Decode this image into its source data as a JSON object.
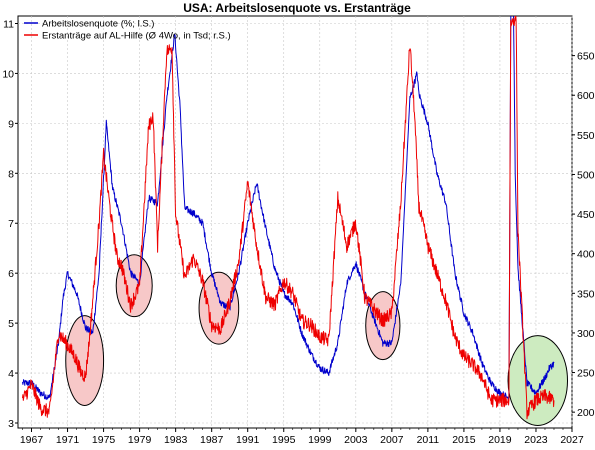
{
  "chart_data": {
    "type": "line",
    "title": "USA: Arbeitslosenquote vs. Erstanträge",
    "xlim": [
      1965.5,
      2027
    ],
    "x_ticks": [
      1967,
      1971,
      1975,
      1979,
      1983,
      1987,
      1991,
      1995,
      1999,
      2003,
      2007,
      2011,
      2015,
      2019,
      2023,
      2027
    ],
    "y_left": {
      "lim": [
        2.9,
        11.15
      ],
      "ticks": [
        3,
        4,
        5,
        6,
        7,
        8,
        9,
        10,
        11
      ]
    },
    "y_right": {
      "lim": [
        180,
        700
      ],
      "ticks": [
        200,
        250,
        300,
        350,
        400,
        450,
        500,
        550,
        600,
        650
      ]
    },
    "grid": true,
    "legend_position": "top-left",
    "series": [
      {
        "name": "Arbeitslosenquote (%; l.S.)",
        "axis": "left",
        "color": "#0000cc",
        "points": [
          [
            1966,
            3.8
          ],
          [
            1967,
            3.8
          ],
          [
            1968,
            3.6
          ],
          [
            1969,
            3.5
          ],
          [
            1970,
            4.6
          ],
          [
            1970.5,
            5.5
          ],
          [
            1971,
            6.0
          ],
          [
            1972,
            5.6
          ],
          [
            1973,
            4.9
          ],
          [
            1973.8,
            4.8
          ],
          [
            1974.5,
            6.0
          ],
          [
            1975.3,
            9.0
          ],
          [
            1976,
            7.7
          ],
          [
            1977,
            7.0
          ],
          [
            1978,
            6.0
          ],
          [
            1979,
            5.8
          ],
          [
            1980,
            7.5
          ],
          [
            1981,
            7.4
          ],
          [
            1982,
            9.5
          ],
          [
            1982.9,
            10.8
          ],
          [
            1983.5,
            9.3
          ],
          [
            1984,
            7.3
          ],
          [
            1985,
            7.2
          ],
          [
            1986,
            7.0
          ],
          [
            1987,
            6.0
          ],
          [
            1988,
            5.4
          ],
          [
            1989,
            5.3
          ],
          [
            1990,
            6.0
          ],
          [
            1991,
            7.0
          ],
          [
            1992,
            7.8
          ],
          [
            1993,
            6.9
          ],
          [
            1994,
            6.1
          ],
          [
            1995,
            5.6
          ],
          [
            1996,
            5.4
          ],
          [
            1997,
            4.8
          ],
          [
            1998,
            4.4
          ],
          [
            1999,
            4.1
          ],
          [
            2000,
            4.0
          ],
          [
            2001,
            4.6
          ],
          [
            2002,
            5.8
          ],
          [
            2003,
            6.2
          ],
          [
            2004,
            5.6
          ],
          [
            2005,
            5.1
          ],
          [
            2006,
            4.6
          ],
          [
            2007,
            4.6
          ],
          [
            2008,
            5.8
          ],
          [
            2009,
            9.5
          ],
          [
            2009.8,
            10.0
          ],
          [
            2010,
            9.6
          ],
          [
            2011,
            9.0
          ],
          [
            2012,
            8.0
          ],
          [
            2013,
            7.4
          ],
          [
            2014,
            6.0
          ],
          [
            2015,
            5.2
          ],
          [
            2016,
            4.8
          ],
          [
            2017,
            4.2
          ],
          [
            2018,
            3.8
          ],
          [
            2019,
            3.6
          ],
          [
            2020,
            3.5
          ],
          [
            2020.3,
            14.7
          ],
          [
            2020.7,
            8.0
          ],
          [
            2021,
            6.1
          ],
          [
            2022,
            3.8
          ],
          [
            2023,
            3.6
          ],
          [
            2024,
            3.9
          ],
          [
            2024.5,
            4.1
          ],
          [
            2025,
            4.2
          ]
        ]
      },
      {
        "name": "Erstanträge auf AL-Hilfe (Ø 4Wo, in Tsd; r.S.)",
        "axis": "right",
        "color": "#ee0000",
        "points": [
          [
            1966,
            215
          ],
          [
            1967,
            235
          ],
          [
            1968,
            205
          ],
          [
            1969,
            200
          ],
          [
            1970,
            300
          ],
          [
            1971,
            285
          ],
          [
            1971.8,
            270
          ],
          [
            1972.5,
            250
          ],
          [
            1973,
            245
          ],
          [
            1973.5,
            300
          ],
          [
            1974.5,
            440
          ],
          [
            1975,
            525
          ],
          [
            1975.8,
            450
          ],
          [
            1976.5,
            395
          ],
          [
            1977,
            385
          ],
          [
            1978,
            335
          ],
          [
            1979,
            360
          ],
          [
            1980,
            560
          ],
          [
            1980.5,
            575
          ],
          [
            1981,
            410
          ],
          [
            1982,
            655
          ],
          [
            1982.6,
            660
          ],
          [
            1983,
            450
          ],
          [
            1984,
            370
          ],
          [
            1985,
            395
          ],
          [
            1986,
            365
          ],
          [
            1987,
            310
          ],
          [
            1988,
            305
          ],
          [
            1989,
            340
          ],
          [
            1990,
            390
          ],
          [
            1991,
            490
          ],
          [
            1992,
            410
          ],
          [
            1993,
            345
          ],
          [
            1994,
            335
          ],
          [
            1995,
            365
          ],
          [
            1996,
            350
          ],
          [
            1997,
            315
          ],
          [
            1998,
            310
          ],
          [
            1999,
            295
          ],
          [
            2000,
            290
          ],
          [
            2001,
            470
          ],
          [
            2002,
            410
          ],
          [
            2003,
            440
          ],
          [
            2004,
            345
          ],
          [
            2005,
            330
          ],
          [
            2006,
            315
          ],
          [
            2007,
            325
          ],
          [
            2008,
            465
          ],
          [
            2009,
            665
          ],
          [
            2009.5,
            580
          ],
          [
            2010,
            460
          ],
          [
            2011,
            410
          ],
          [
            2012,
            375
          ],
          [
            2013,
            340
          ],
          [
            2014,
            295
          ],
          [
            2015,
            270
          ],
          [
            2016,
            260
          ],
          [
            2017,
            245
          ],
          [
            2018,
            215
          ],
          [
            2019,
            215
          ],
          [
            2020,
            215
          ],
          [
            2020.2,
            690
          ],
          [
            2020.8,
            700
          ],
          [
            2021,
            430
          ],
          [
            2022,
            200
          ],
          [
            2023,
            215
          ],
          [
            2024,
            220
          ],
          [
            2025,
            215
          ]
        ]
      }
    ]
  }
}
